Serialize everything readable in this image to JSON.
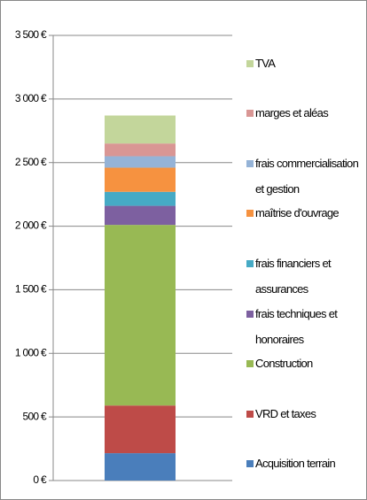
{
  "chart_data": {
    "type": "stacked_bar",
    "categories": [
      null
    ],
    "series": [
      {
        "name": "Acquisition terrain",
        "color": "#4a7ebb",
        "values": [
          215
        ]
      },
      {
        "name": "VRD et taxes",
        "color": "#be4b48",
        "values": [
          375
        ]
      },
      {
        "name": "Construction",
        "color": "#98b954",
        "values": [
          1420
        ]
      },
      {
        "name": "frais techniques et honoraires",
        "color": "#7d60a0",
        "values": [
          150
        ]
      },
      {
        "name": "frais financiers et assurances",
        "color": "#46aac5",
        "values": [
          110
        ]
      },
      {
        "name": "maîtrise d'ouvrage",
        "color": "#f69240",
        "values": [
          190
        ]
      },
      {
        "name": "frais commercialisation et gestion",
        "color": "#95b3d7",
        "values": [
          90
        ]
      },
      {
        "name": "marges et aléas",
        "color": "#d99694",
        "values": [
          100
        ]
      },
      {
        "name": "TVA",
        "color": "#c3d69b",
        "values": [
          220
        ]
      }
    ],
    "ylim": [
      0,
      3500
    ],
    "yticks": [
      {
        "value": 0,
        "label": "0 €"
      },
      {
        "value": 500,
        "label": "500 €"
      },
      {
        "value": 1000,
        "label": "1 000 €"
      },
      {
        "value": 1500,
        "label": "1 500 €"
      },
      {
        "value": 2000,
        "label": "2 000 €"
      },
      {
        "value": 2500,
        "label": "2 500 €"
      },
      {
        "value": 3000,
        "label": "3 000 €"
      },
      {
        "value": 3500,
        "label": "3 500 €"
      }
    ],
    "grid": true,
    "legend": "right"
  }
}
